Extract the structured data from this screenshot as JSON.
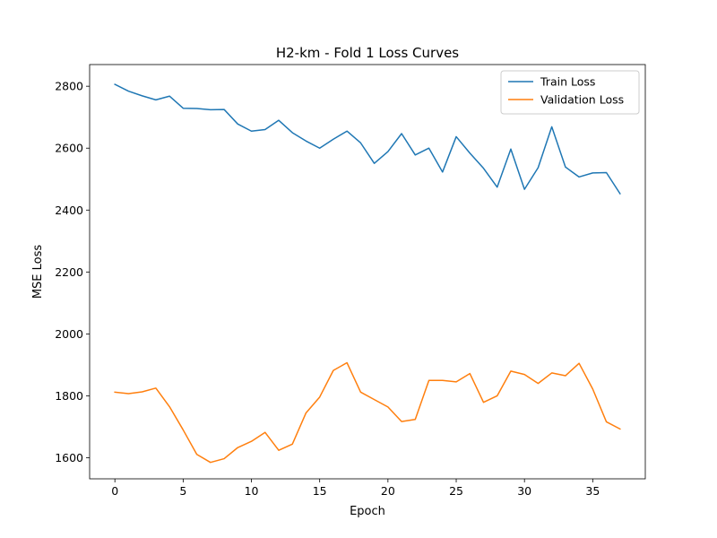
{
  "chart_data": {
    "type": "line",
    "title": "H2-km - Fold 1 Loss Curves",
    "xlabel": "Epoch",
    "ylabel": "MSE Loss",
    "xlim": [
      -1.85,
      38.85
    ],
    "ylim": [
      1532,
      2870
    ],
    "xticks": [
      0,
      5,
      10,
      15,
      20,
      25,
      30,
      35
    ],
    "yticks": [
      1600,
      1800,
      2000,
      2200,
      2400,
      2600,
      2800
    ],
    "grid": false,
    "legend_position": "top-right",
    "x": [
      0,
      1,
      2,
      3,
      4,
      5,
      6,
      7,
      8,
      9,
      10,
      11,
      12,
      13,
      14,
      15,
      16,
      17,
      18,
      19,
      20,
      21,
      22,
      23,
      24,
      25,
      26,
      27,
      28,
      29,
      30,
      31,
      32,
      33,
      34,
      35,
      36,
      37
    ],
    "series": [
      {
        "name": "Train Loss",
        "color": "#1f77b4",
        "values": [
          2806,
          2784,
          2769,
          2756,
          2768,
          2729,
          2728,
          2724,
          2725,
          2678,
          2655,
          2660,
          2690,
          2650,
          2623,
          2600,
          2629,
          2655,
          2617,
          2551,
          2589,
          2647,
          2578,
          2600,
          2523,
          2637,
          2584,
          2535,
          2474,
          2597,
          2467,
          2537,
          2669,
          2539,
          2507,
          2520,
          2521,
          2453
        ]
      },
      {
        "name": "Validation Loss",
        "color": "#ff7f0e",
        "values": [
          1812,
          1807,
          1813,
          1825,
          1765,
          1690,
          1611,
          1585,
          1597,
          1633,
          1653,
          1682,
          1624,
          1644,
          1745,
          1796,
          1882,
          1907,
          1812,
          1788,
          1764,
          1717,
          1724,
          1850,
          1850,
          1845,
          1872,
          1779,
          1800,
          1880,
          1869,
          1840,
          1874,
          1865,
          1905,
          1822,
          1716,
          1693
        ]
      }
    ]
  }
}
